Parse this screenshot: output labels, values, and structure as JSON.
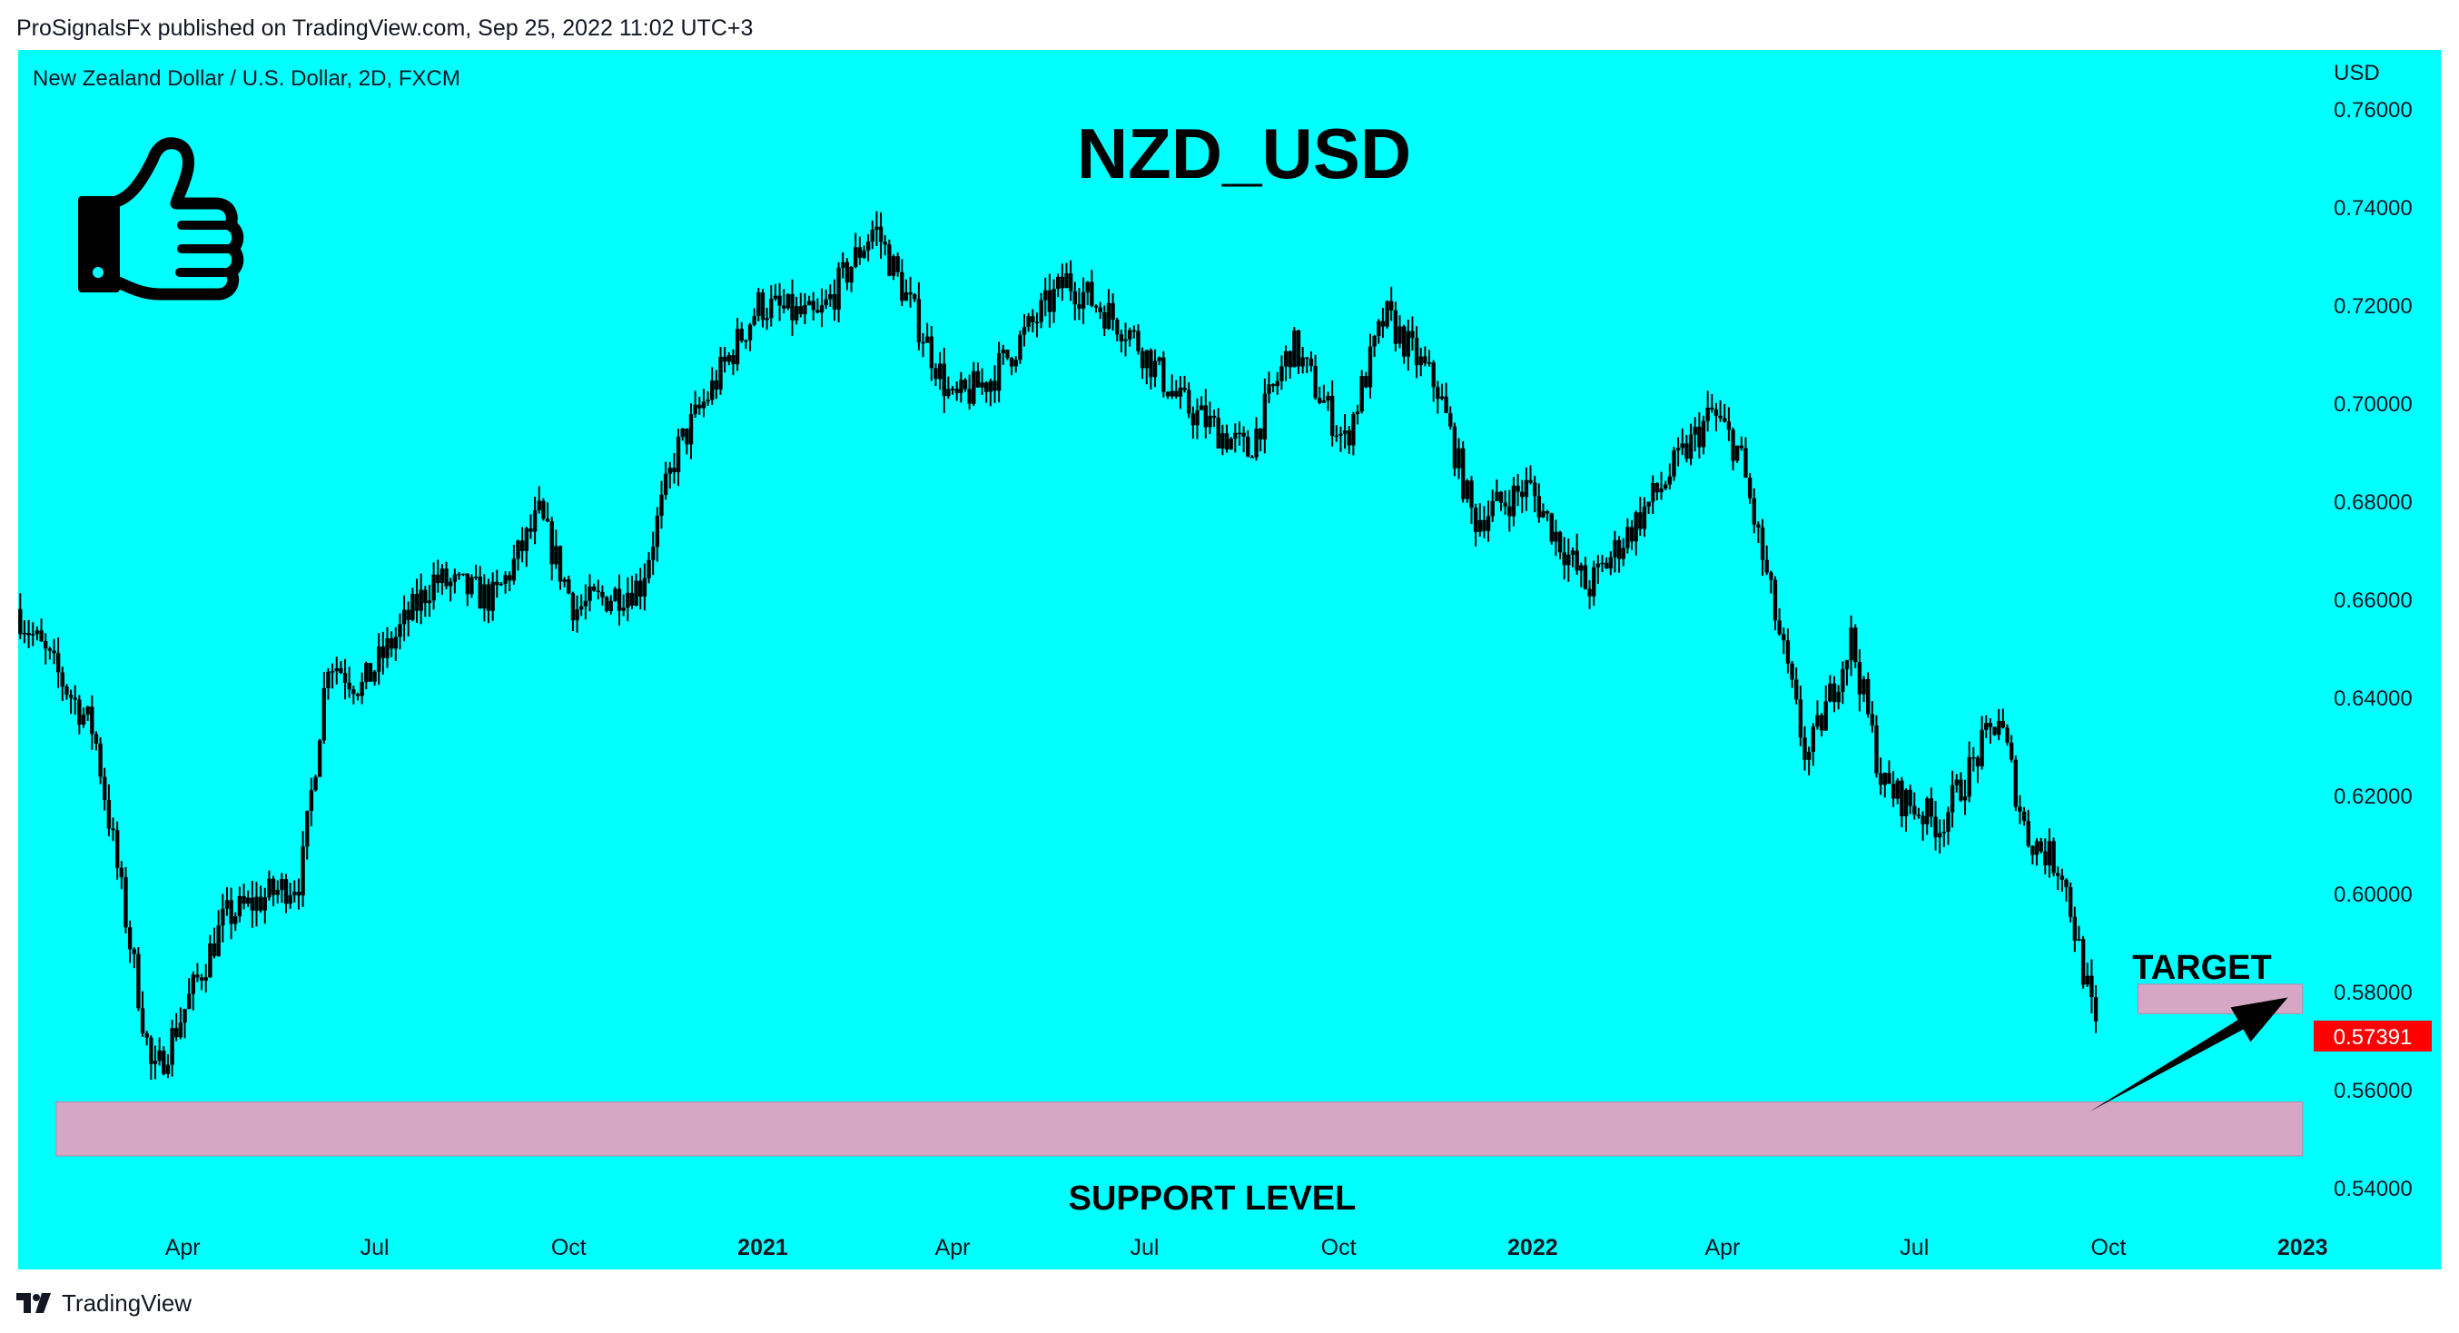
{
  "header": {
    "published_text": "ProSignalsFx published on TradingView.com, Sep 25, 2022 11:02 UTC+3"
  },
  "footer": {
    "brand": "TradingView",
    "logo_icon": "tradingview-logo-icon"
  },
  "colors": {
    "background": "#00ffff",
    "candle": "#000000",
    "zone": "#d6a7c5",
    "last_price_badge": "#ff0000",
    "text": "#000000"
  },
  "chart_data": {
    "type": "candlestick",
    "symbol_label": "New Zealand Dollar / U.S. Dollar, 2D, FXCM",
    "title": "NZD_USD",
    "currency": "USD",
    "ylim": [
      0.535,
      0.772
    ],
    "y_ticks": [
      "0.76000",
      "0.74000",
      "0.72000",
      "0.70000",
      "0.68000",
      "0.66000",
      "0.64000",
      "0.62000",
      "0.60000",
      "0.58000",
      "0.56000",
      "0.54000"
    ],
    "x_ticks": [
      {
        "label": "Apr",
        "date": "2020-04-01",
        "bold": false
      },
      {
        "label": "Jul",
        "date": "2020-07-01",
        "bold": false
      },
      {
        "label": "Oct",
        "date": "2020-10-01",
        "bold": false
      },
      {
        "label": "2021",
        "date": "2021-01-01",
        "bold": true
      },
      {
        "label": "Apr",
        "date": "2021-04-01",
        "bold": false
      },
      {
        "label": "Jul",
        "date": "2021-07-01",
        "bold": false
      },
      {
        "label": "Oct",
        "date": "2021-10-01",
        "bold": false
      },
      {
        "label": "2022",
        "date": "2022-01-01",
        "bold": true
      },
      {
        "label": "Apr",
        "date": "2022-04-01",
        "bold": false
      },
      {
        "label": "Jul",
        "date": "2022-07-01",
        "bold": false
      },
      {
        "label": "Oct",
        "date": "2022-10-01",
        "bold": false
      },
      {
        "label": "2023",
        "date": "2023-01-01",
        "bold": true
      }
    ],
    "date_range": [
      "2020-01-14",
      "2023-01-05"
    ],
    "last_price": "0.57391",
    "last_price_value": 0.57391,
    "price_path": [
      {
        "date": "2020-01-14",
        "price": 0.658
      },
      {
        "date": "2020-02-20",
        "price": 0.633
      },
      {
        "date": "2020-03-19",
        "price": 0.562
      },
      {
        "date": "2020-04-22",
        "price": 0.595
      },
      {
        "date": "2020-05-28",
        "price": 0.603
      },
      {
        "date": "2020-06-10",
        "price": 0.648
      },
      {
        "date": "2020-06-26",
        "price": 0.642
      },
      {
        "date": "2020-07-30",
        "price": 0.664
      },
      {
        "date": "2020-08-28",
        "price": 0.66
      },
      {
        "date": "2020-09-18",
        "price": 0.677
      },
      {
        "date": "2020-10-05",
        "price": 0.658
      },
      {
        "date": "2020-11-05",
        "price": 0.663
      },
      {
        "date": "2020-11-22",
        "price": 0.69
      },
      {
        "date": "2020-12-31",
        "price": 0.72
      },
      {
        "date": "2021-01-28",
        "price": 0.717
      },
      {
        "date": "2021-02-24",
        "price": 0.736
      },
      {
        "date": "2021-03-20",
        "price": 0.713
      },
      {
        "date": "2021-04-02",
        "price": 0.7
      },
      {
        "date": "2021-04-20",
        "price": 0.705
      },
      {
        "date": "2021-05-26",
        "price": 0.725
      },
      {
        "date": "2021-06-24",
        "price": 0.715
      },
      {
        "date": "2021-07-19",
        "price": 0.7
      },
      {
        "date": "2021-08-20",
        "price": 0.69
      },
      {
        "date": "2021-09-10",
        "price": 0.712
      },
      {
        "date": "2021-10-05",
        "price": 0.692
      },
      {
        "date": "2021-10-24",
        "price": 0.718
      },
      {
        "date": "2021-11-18",
        "price": 0.703
      },
      {
        "date": "2021-12-05",
        "price": 0.676
      },
      {
        "date": "2021-12-31",
        "price": 0.683
      },
      {
        "date": "2022-01-28",
        "price": 0.662
      },
      {
        "date": "2022-03-04",
        "price": 0.683
      },
      {
        "date": "2022-03-28",
        "price": 0.698
      },
      {
        "date": "2022-04-10",
        "price": 0.69
      },
      {
        "date": "2022-05-12",
        "price": 0.627
      },
      {
        "date": "2022-06-02",
        "price": 0.652
      },
      {
        "date": "2022-06-17",
        "price": 0.622
      },
      {
        "date": "2022-07-14",
        "price": 0.614
      },
      {
        "date": "2022-08-11",
        "price": 0.636
      },
      {
        "date": "2022-08-24",
        "price": 0.612
      },
      {
        "date": "2022-09-10",
        "price": 0.605
      },
      {
        "date": "2022-09-25",
        "price": 0.574
      }
    ],
    "annotations": {
      "support_label": "SUPPORT LEVEL",
      "support_zone": {
        "low": 0.5465,
        "high": 0.5575,
        "from": "2020-02-01",
        "to": "2023-01-01"
      },
      "target_label": "TARGET",
      "target_zone": {
        "low": 0.5755,
        "high": 0.5815,
        "from": "2022-10-15",
        "to": "2023-01-01"
      },
      "arrow": {
        "from": {
          "date": "2022-09-22",
          "price": 0.5555
        },
        "to": {
          "date": "2022-12-25",
          "price": 0.5788
        }
      },
      "icon": "thumbs-up-icon"
    }
  }
}
